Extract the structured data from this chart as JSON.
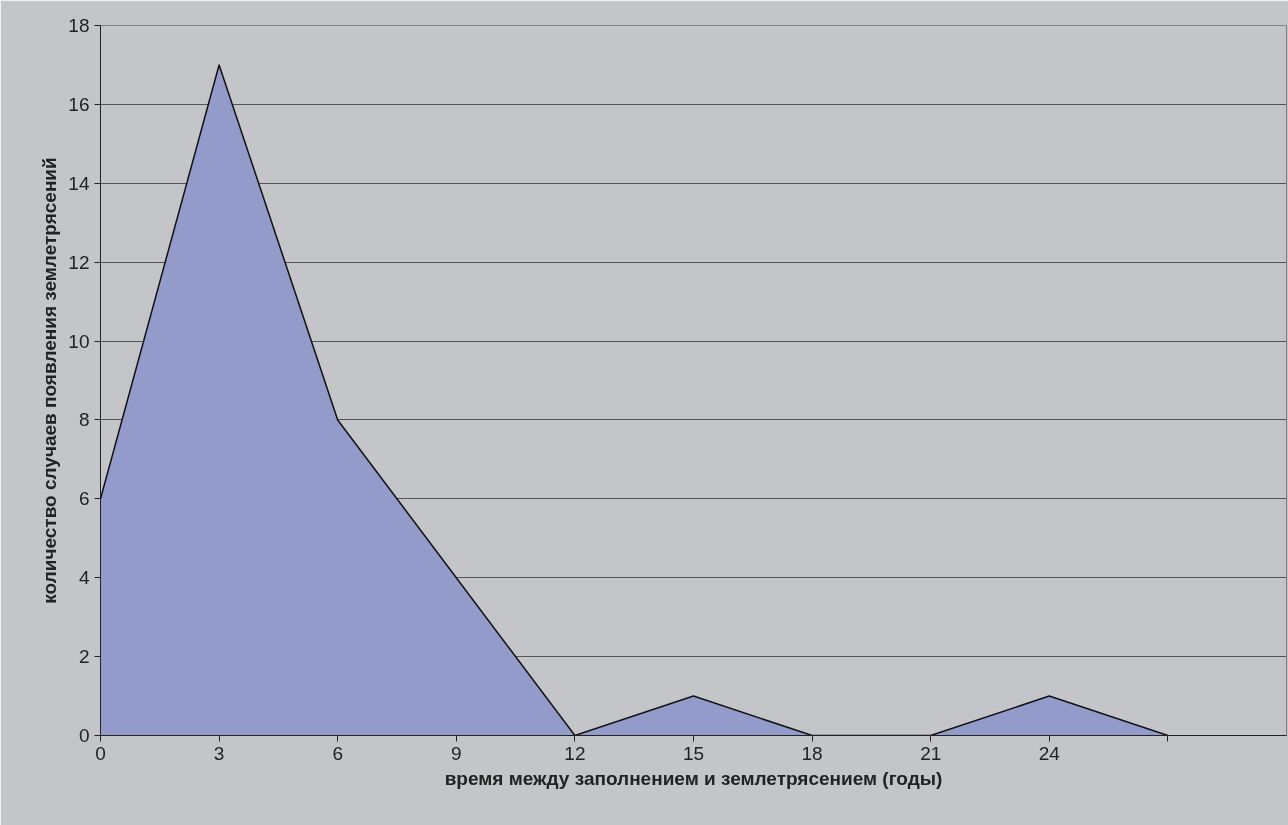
{
  "chart_data": {
    "type": "area",
    "xlabel": "время между заполнением и землетрясением (годы)",
    "ylabel": "количество случаев появления землетрясений",
    "x": [
      0,
      3,
      6,
      9,
      12,
      15,
      18,
      21,
      24,
      27
    ],
    "series": [
      {
        "color": "#939bcb",
        "values": [
          6,
          17,
          8,
          4,
          0,
          1,
          0,
          0,
          1,
          0
        ]
      }
    ],
    "xlim": [
      0,
      30
    ],
    "xticks": [
      0,
      3,
      6,
      9,
      12,
      15,
      18,
      21,
      24,
      {
        "value": 27,
        "label": null
      }
    ],
    "ylim": [
      0,
      18
    ],
    "yticks": [
      0,
      2,
      4,
      6,
      8,
      10,
      12,
      14,
      16,
      18
    ],
    "grid": "y"
  }
}
